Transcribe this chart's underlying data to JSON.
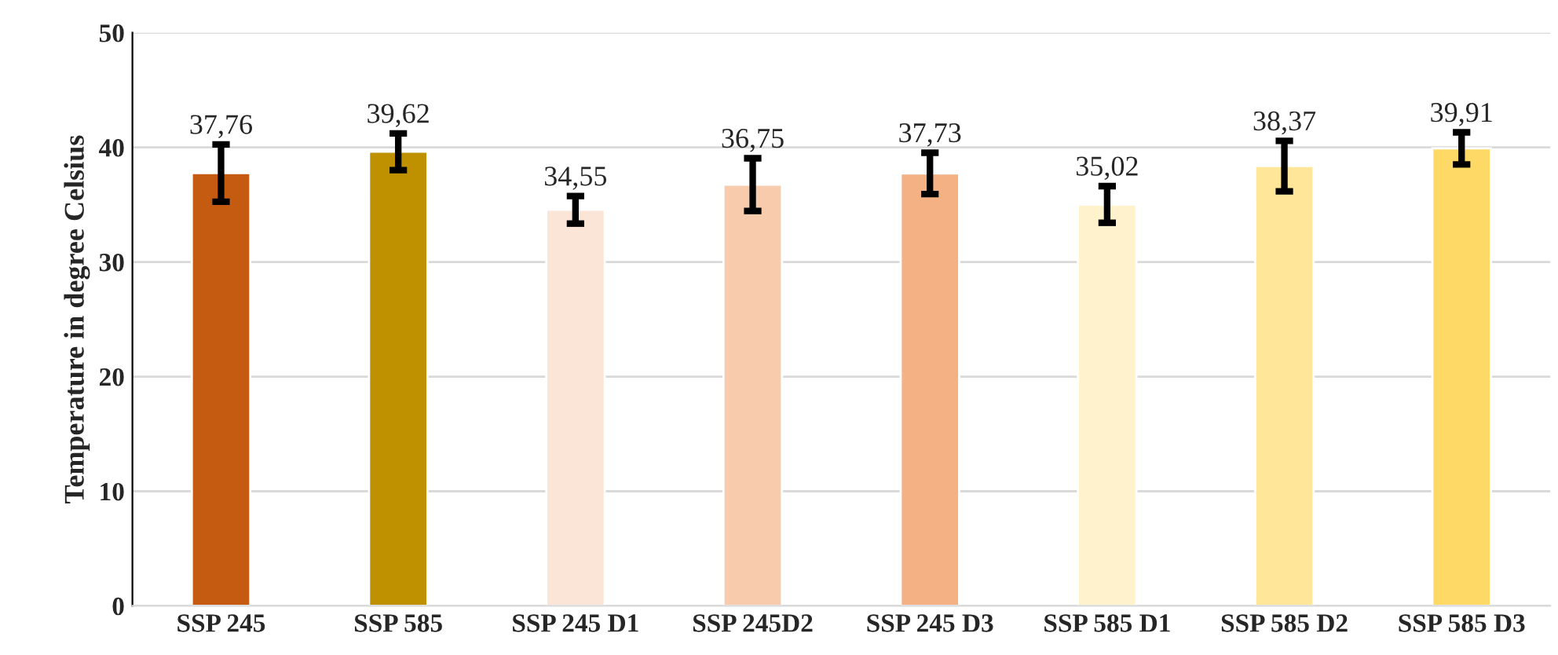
{
  "chart_data": {
    "type": "bar",
    "ylabel": "Temperature in degree Celsius",
    "categories": [
      "SSP 245",
      "SSP 585",
      "SSP 245 D1",
      "SSP 245D2",
      "SSP 245 D3",
      "SSP 585 D1",
      "SSP 585 D2",
      "SSP 585 D3"
    ],
    "values": [
      37.76,
      39.62,
      34.55,
      36.75,
      37.73,
      35.02,
      38.37,
      39.91
    ],
    "value_labels": [
      "37,76",
      "39,62",
      "34,55",
      "36,75",
      "37,73",
      "35,02",
      "38,37",
      "39,91"
    ],
    "errors": [
      2.5,
      1.6,
      1.2,
      2.3,
      1.8,
      1.6,
      2.2,
      1.4
    ],
    "colors": [
      "#c55a11",
      "#bf9000",
      "#fbe5d6",
      "#f8cbad",
      "#f4b183",
      "#fff2cc",
      "#ffe699",
      "#ffd966"
    ],
    "ylim": [
      0,
      50
    ],
    "yticks": [
      0,
      10,
      20,
      30,
      40,
      50
    ],
    "grid": "y",
    "legend": false
  }
}
